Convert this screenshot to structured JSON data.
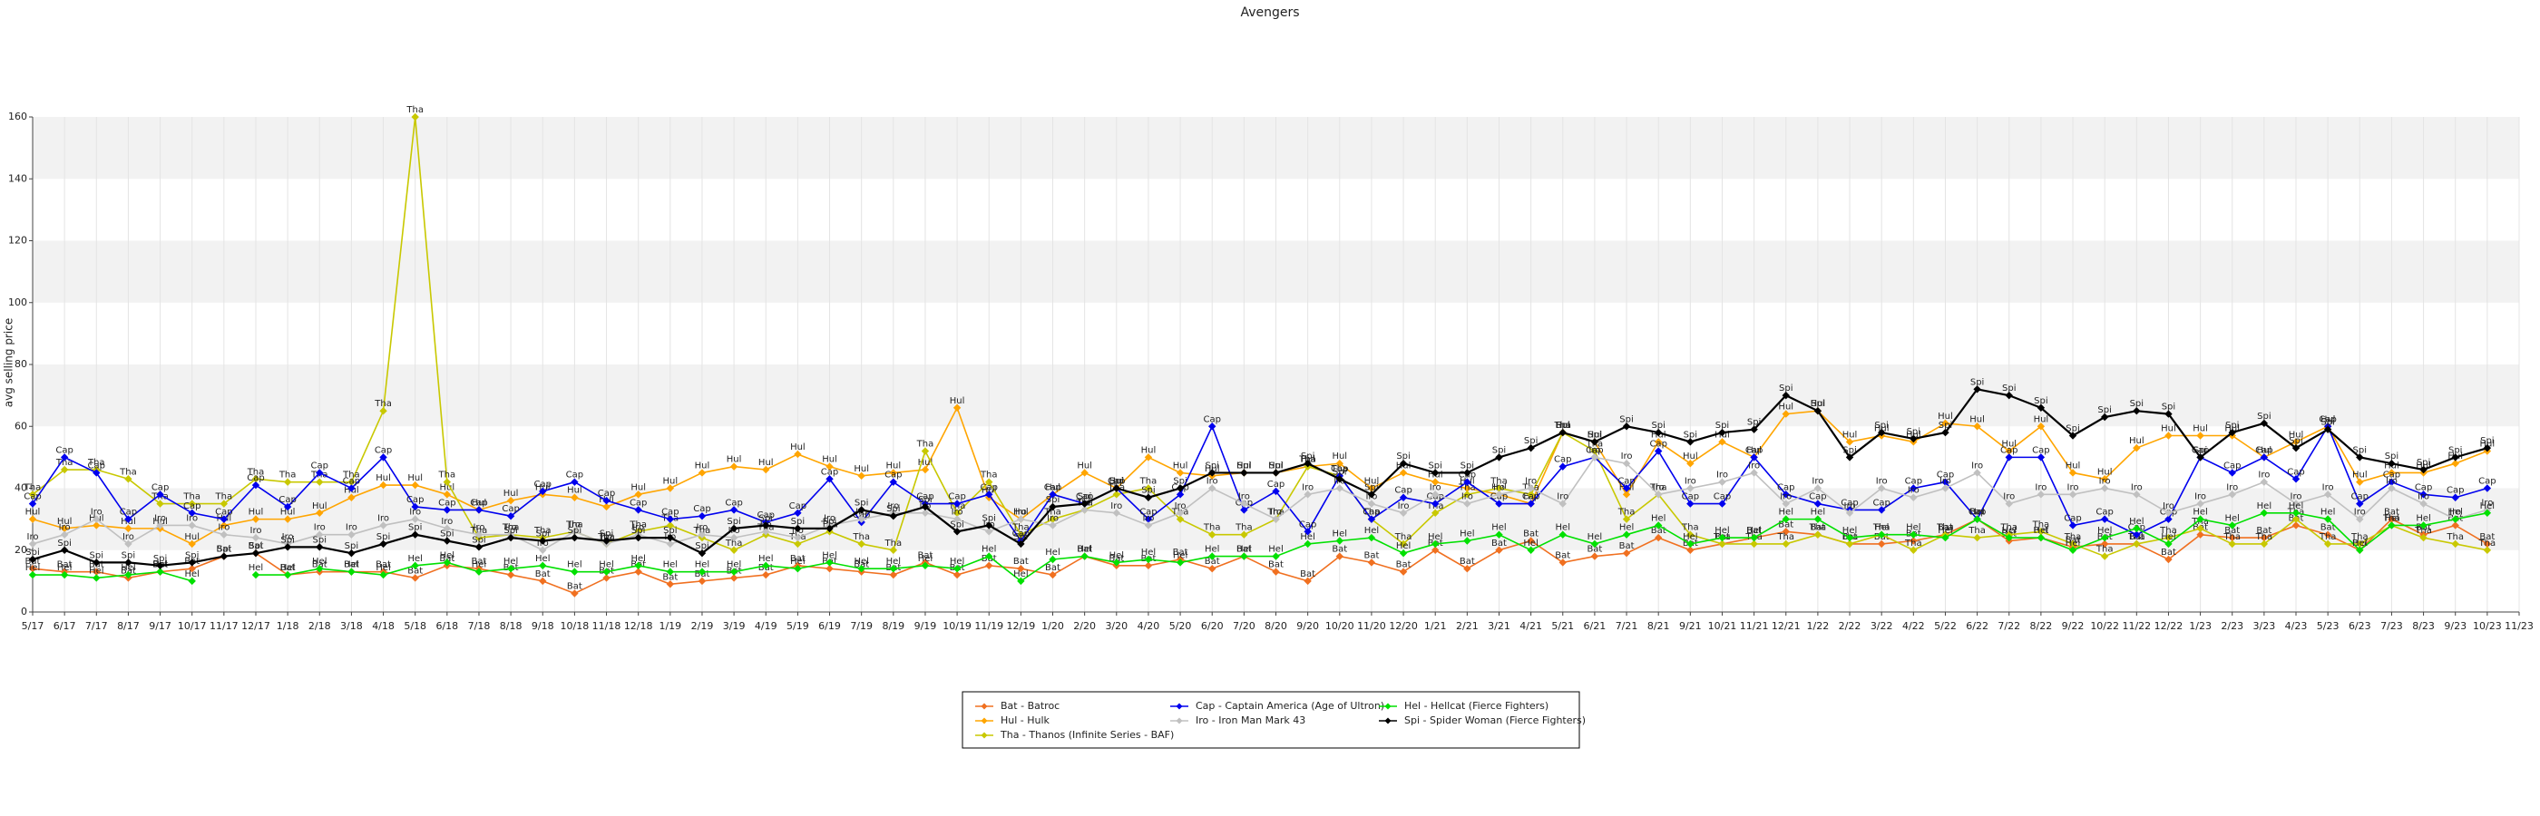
{
  "chart_data": {
    "type": "line",
    "title": "Avengers",
    "y_label": "avg selling price",
    "categories": [
      "5/17",
      "6/17",
      "7/17",
      "8/17",
      "9/17",
      "10/17",
      "11/17",
      "12/17",
      "1/18",
      "2/18",
      "3/18",
      "4/18",
      "5/18",
      "6/18",
      "7/18",
      "8/18",
      "9/18",
      "10/18",
      "11/18",
      "12/18",
      "1/19",
      "2/19",
      "3/19",
      "4/19",
      "5/19",
      "6/19",
      "7/19",
      "8/19",
      "9/19",
      "10/19",
      "11/19",
      "12/19",
      "1/20",
      "2/20",
      "3/20",
      "4/20",
      "5/20",
      "6/20",
      "7/20",
      "8/20",
      "9/20",
      "10/20",
      "11/20",
      "12/20",
      "1/21",
      "2/21",
      "3/21",
      "4/21",
      "5/21",
      "6/21",
      "7/21",
      "8/21",
      "9/21",
      "10/21",
      "11/21",
      "12/21",
      "1/22",
      "2/22",
      "3/22",
      "4/22",
      "5/22",
      "6/22",
      "7/22",
      "8/22",
      "9/22",
      "10/22",
      "11/22",
      "12/22",
      "1/23",
      "2/23",
      "3/23",
      "4/23",
      "5/23",
      "6/23",
      "7/23",
      "8/23",
      "9/23",
      "10/23",
      "11/23"
    ],
    "ylim": [
      0,
      160
    ],
    "yticks": [
      0,
      20,
      40,
      60,
      80,
      100,
      120,
      140,
      160
    ],
    "grid": true,
    "series": [
      {
        "name": "Bat - Batroc",
        "short": "Bat",
        "color": "#f07020",
        "values": [
          14,
          13,
          13,
          11,
          13,
          14,
          18,
          19,
          12,
          13,
          13,
          13,
          11,
          15,
          14,
          12,
          10,
          6,
          11,
          13,
          9,
          10,
          11,
          12,
          15,
          14,
          13,
          12,
          16,
          12,
          15,
          14,
          12,
          18,
          15,
          15,
          17,
          14,
          18,
          13,
          10,
          18,
          16,
          13,
          20,
          14,
          20,
          23,
          16,
          18,
          19,
          24,
          20,
          22,
          24,
          26,
          25,
          22,
          22,
          23,
          25,
          30,
          23,
          24,
          21,
          22,
          22,
          17,
          25,
          24,
          24,
          28,
          25,
          20,
          30,
          25,
          28,
          22,
          null
        ]
      },
      {
        "name": "Hul - Hulk",
        "short": "Hul",
        "color": "#ffa500",
        "values": [
          30,
          27,
          28,
          27,
          27,
          22,
          28,
          30,
          30,
          32,
          37,
          41,
          41,
          38,
          33,
          36,
          38,
          37,
          34,
          38,
          40,
          45,
          47,
          46,
          51,
          47,
          44,
          45,
          46,
          66,
          37,
          30,
          38,
          45,
          40,
          50,
          45,
          44,
          45,
          45,
          47,
          48,
          40,
          45,
          42,
          40,
          38,
          35,
          58,
          55,
          38,
          55,
          48,
          55,
          50,
          64,
          65,
          55,
          57,
          55,
          61,
          60,
          52,
          60,
          45,
          43,
          53,
          57,
          57,
          57,
          50,
          55,
          60,
          42,
          45,
          45,
          48,
          52,
          null
        ]
      },
      {
        "name": "Tha - Thanos (Infinite Series - BAF)",
        "short": "Tha",
        "color": "#c8c800",
        "values": [
          38,
          46,
          46,
          43,
          35,
          35,
          35,
          43,
          42,
          42,
          42,
          65,
          160,
          42,
          24,
          25,
          24,
          26,
          22,
          26,
          28,
          24,
          20,
          25,
          22,
          26,
          22,
          20,
          52,
          32,
          42,
          25,
          30,
          33,
          38,
          40,
          30,
          25,
          25,
          30,
          47,
          44,
          30,
          22,
          32,
          38,
          40,
          38,
          58,
          52,
          30,
          38,
          25,
          22,
          22,
          22,
          25,
          22,
          25,
          20,
          25,
          24,
          25,
          26,
          22,
          18,
          22,
          24,
          27,
          22,
          22,
          30,
          22,
          22,
          28,
          24,
          22,
          20,
          null
        ]
      },
      {
        "name": "Cap - Captain America (Age of Ultron)",
        "short": "Cap",
        "color": "#0000ee",
        "values": [
          35,
          50,
          45,
          30,
          38,
          32,
          30,
          41,
          34,
          45,
          40,
          50,
          34,
          33,
          33,
          31,
          39,
          42,
          36,
          33,
          30,
          31,
          33,
          29,
          32,
          43,
          29,
          42,
          35,
          35,
          38,
          23,
          38,
          35,
          40,
          30,
          38,
          60,
          33,
          39,
          26,
          44,
          30,
          37,
          35,
          42,
          35,
          35,
          47,
          50,
          40,
          52,
          35,
          35,
          50,
          38,
          35,
          33,
          33,
          40,
          42,
          30,
          50,
          50,
          28,
          30,
          25,
          30,
          50,
          45,
          50,
          43,
          60,
          35,
          42,
          38,
          37,
          40,
          null
        ]
      },
      {
        "name": "Iro - Iron Man Mark 43",
        "short": "Iro",
        "color": "#c0c0c0",
        "values": [
          22,
          25,
          30,
          22,
          28,
          28,
          25,
          24,
          22,
          25,
          25,
          28,
          30,
          27,
          25,
          25,
          20,
          26,
          22,
          25,
          22,
          25,
          24,
          26,
          24,
          28,
          30,
          32,
          32,
          30,
          26,
          30,
          28,
          33,
          32,
          28,
          32,
          40,
          35,
          30,
          38,
          40,
          35,
          32,
          38,
          35,
          38,
          40,
          35,
          50,
          48,
          38,
          40,
          42,
          45,
          35,
          40,
          32,
          40,
          37,
          40,
          45,
          35,
          38,
          38,
          40,
          38,
          32,
          35,
          38,
          42,
          35,
          38,
          30,
          40,
          35,
          30,
          33,
          null
        ]
      },
      {
        "name": "Hel - Hellcat (Fierce Fighters)",
        "short": "Hel",
        "color": "#00e000",
        "values": [
          12,
          12,
          11,
          12,
          13,
          10,
          null,
          12,
          12,
          14,
          13,
          12,
          15,
          16,
          13,
          14,
          15,
          13,
          13,
          15,
          13,
          13,
          13,
          15,
          14,
          16,
          14,
          14,
          15,
          14,
          18,
          10,
          17,
          18,
          16,
          17,
          16,
          18,
          18,
          18,
          22,
          23,
          24,
          19,
          22,
          23,
          25,
          20,
          25,
          22,
          25,
          28,
          22,
          24,
          24,
          30,
          30,
          24,
          25,
          25,
          24,
          30,
          24,
          24,
          20,
          24,
          27,
          22,
          30,
          28,
          32,
          32,
          30,
          20,
          28,
          28,
          30,
          32,
          null
        ]
      },
      {
        "name": "Spi - Spider Woman (Fierce Fighters)",
        "short": "Spi",
        "color": "#000000",
        "values": [
          17,
          20,
          16,
          16,
          15,
          16,
          18,
          19,
          21,
          21,
          19,
          22,
          25,
          23,
          21,
          24,
          23,
          24,
          23,
          24,
          24,
          19,
          27,
          28,
          27,
          27,
          33,
          31,
          34,
          26,
          28,
          22,
          34,
          35,
          40,
          37,
          40,
          45,
          45,
          45,
          48,
          43,
          38,
          48,
          45,
          45,
          50,
          53,
          58,
          55,
          60,
          58,
          55,
          58,
          59,
          70,
          65,
          50,
          58,
          56,
          58,
          72,
          70,
          66,
          57,
          63,
          65,
          64,
          50,
          58,
          61,
          53,
          59,
          50,
          48,
          46,
          50,
          53,
          null
        ]
      }
    ]
  }
}
